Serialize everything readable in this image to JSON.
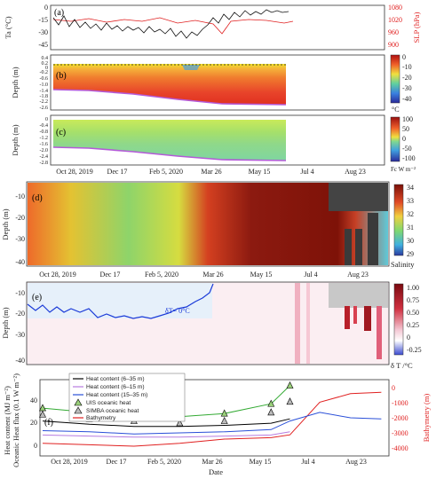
{
  "date_ticks": [
    "Oct 28, 2019",
    "Dec 17",
    "Feb 5, 2020",
    "Mar 26",
    "May 15",
    "Jul 4",
    "Aug 23"
  ],
  "xlabel": "Date",
  "panels": {
    "a": {
      "letter": "(a)",
      "ylabel_left": "Ta (°C)",
      "ylabel_right": "SLP (hPa)",
      "yticks_left": [
        "0",
        "-15",
        "-30",
        "-45"
      ],
      "yticks_right": [
        "1080",
        "1020",
        "960",
        "900"
      ]
    },
    "b": {
      "letter": "(b)",
      "ylabel": "Depth (m)",
      "yticks": [
        "0.4",
        "0.2",
        "0",
        "-0.2",
        "-0.6",
        "-1.0",
        "-1.4",
        "-1.8",
        "-2.2",
        "-2.6"
      ],
      "cbar_ticks": [
        "0",
        "-10",
        "-20",
        "-30",
        "-40"
      ],
      "cbar_unit": "°C"
    },
    "c": {
      "letter": "(c)",
      "ylabel": "Depth (m)",
      "yticks": [
        "0",
        "-0.4",
        "-0.8",
        "-1.2",
        "-1.6",
        "-2.0",
        "-2.4",
        "-2.8"
      ],
      "cbar_ticks": [
        "100",
        "50",
        "0",
        "-50",
        "-100"
      ],
      "cbar_unit": "Fc W m⁻²"
    },
    "d": {
      "letter": "(d)",
      "ylabel": "Depth (m)",
      "yticks": [
        "-10",
        "-20",
        "-30",
        "-40"
      ],
      "cbar_ticks": [
        "34",
        "33",
        "32",
        "31",
        "30",
        "29"
      ],
      "cbar_unit": "Salinity"
    },
    "e": {
      "letter": "(e)",
      "ylabel": "Depth (m)",
      "yticks": [
        "-10",
        "-20",
        "-30",
        "-40"
      ],
      "cbar_ticks": [
        "1.00",
        "0.75",
        "0.50",
        "0.25",
        "0",
        "-0.25"
      ],
      "cbar_unit": "δ T /°C",
      "annotation": "δT= 0°C"
    },
    "f": {
      "letter": "(f)",
      "ylabel_left_1": "Heat content (MJ m⁻²)",
      "ylabel_left_2": "Oceanic Heat flux (0.1 W m⁻²)",
      "ylabel_right": "Bathymetry (m)",
      "yticks_left": [
        "40",
        "20",
        "0"
      ],
      "yticks_right": [
        "0",
        "-1000",
        "-2000",
        "-3000",
        "-4000"
      ]
    }
  },
  "legend": [
    {
      "label": "Heat content (6–35 m)",
      "color": "#000000",
      "marker": "line"
    },
    {
      "label": "Heat content (6–15 m)",
      "color": "#b77be0",
      "marker": "line"
    },
    {
      "label": "Heat content (15–35 m)",
      "color": "#2a4fd8",
      "marker": "line"
    },
    {
      "label": "UIS oceanic heat",
      "color": "#33aa33",
      "marker": "triangle"
    },
    {
      "label": "SIMBA oceanic heat",
      "color": "#888888",
      "marker": "triangle"
    },
    {
      "label": "Bathymetry",
      "color": "#e02020",
      "marker": "line"
    }
  ],
  "chart_data": [
    {
      "panel": "a",
      "type": "line",
      "series": [
        {
          "name": "Ta (°C)",
          "color": "#111111"
        },
        {
          "name": "SLP (hPa)",
          "color": "#e02020"
        }
      ],
      "ylim_left": [
        -45,
        5
      ],
      "ylim_right": [
        900,
        1090
      ],
      "x": [
        "2019-10-15",
        "2019-11-15",
        "2019-12-15",
        "2020-01-15",
        "2020-02-15",
        "2020-03-15",
        "2020-04-15",
        "2020-05-15",
        "2020-06-10"
      ],
      "ta_values": [
        -8,
        -18,
        -22,
        -26,
        -28,
        -32,
        -22,
        -12,
        -2
      ],
      "slp_values": [
        1012,
        1008,
        1015,
        1012,
        1018,
        1015,
        1010,
        1013,
        1008
      ]
    },
    {
      "panel": "b",
      "type": "heatmap",
      "variable": "Temperature",
      "unit": "°C",
      "clim": [
        -40,
        0
      ],
      "surface_line_depth_m": 0.1,
      "ice_bottom_depth_m": {
        "2019-10-15": -1.5,
        "2020-01-01": -1.9,
        "2020-03-01": -2.3,
        "2020-05-01": -2.5,
        "2020-06-10": -2.5
      }
    },
    {
      "panel": "c",
      "type": "heatmap",
      "variable": "Conductive heat flux Fc",
      "unit": "W m⁻²",
      "clim": [
        -100,
        100
      ],
      "ice_bottom_depth_m": {
        "2019-10-15": -1.5,
        "2020-01-01": -1.9,
        "2020-03-01": -2.3,
        "2020-05-01": -2.5,
        "2020-06-10": -2.5
      }
    },
    {
      "panel": "d",
      "type": "heatmap",
      "variable": "Salinity",
      "clim": [
        29,
        34.5
      ],
      "ylim": [
        -40,
        -5
      ]
    },
    {
      "panel": "e",
      "type": "heatmap",
      "variable": "δT",
      "unit": "°C",
      "clim": [
        -0.25,
        1.0
      ],
      "ylim": [
        -40,
        -5
      ],
      "contour_dT0_depth_m": {
        "2019-10-15": -12,
        "2019-11-15": -18,
        "2019-12-15": -20,
        "2020-01-15": -22,
        "2020-02-15": -22,
        "2020-03-15": -18,
        "2020-03-26": -10
      }
    },
    {
      "panel": "f",
      "type": "line",
      "ylim_left": [
        -8,
        58
      ],
      "ylim_right": [
        -4500,
        500
      ],
      "x": [
        "2019-10-15",
        "2019-12-01",
        "2020-01-15",
        "2020-03-01",
        "2020-04-15",
        "2020-06-01",
        "2020-06-20",
        "2020-07-20",
        "2020-08-20",
        "2020-09-20"
      ],
      "heat_content_6_35": [
        22,
        19,
        17,
        17,
        18,
        20,
        24,
        null,
        null,
        null
      ],
      "heat_content_6_15": [
        9,
        8,
        7,
        7,
        8,
        9,
        12,
        null,
        null,
        null
      ],
      "heat_content_15_35": [
        13,
        12,
        10,
        11,
        12,
        14,
        22,
        30,
        25,
        24
      ],
      "uis_oceanic_heat": [
        34,
        30,
        27,
        26,
        29,
        38,
        55,
        null,
        null,
        null
      ],
      "simba_oceanic_heat": [
        28,
        24,
        22,
        20,
        22,
        30,
        40,
        null,
        null,
        null
      ],
      "bathymetry": [
        -3800,
        -3900,
        -4000,
        -3800,
        -3500,
        -3400,
        -3200,
        -900,
        -300,
        -200
      ]
    }
  ]
}
